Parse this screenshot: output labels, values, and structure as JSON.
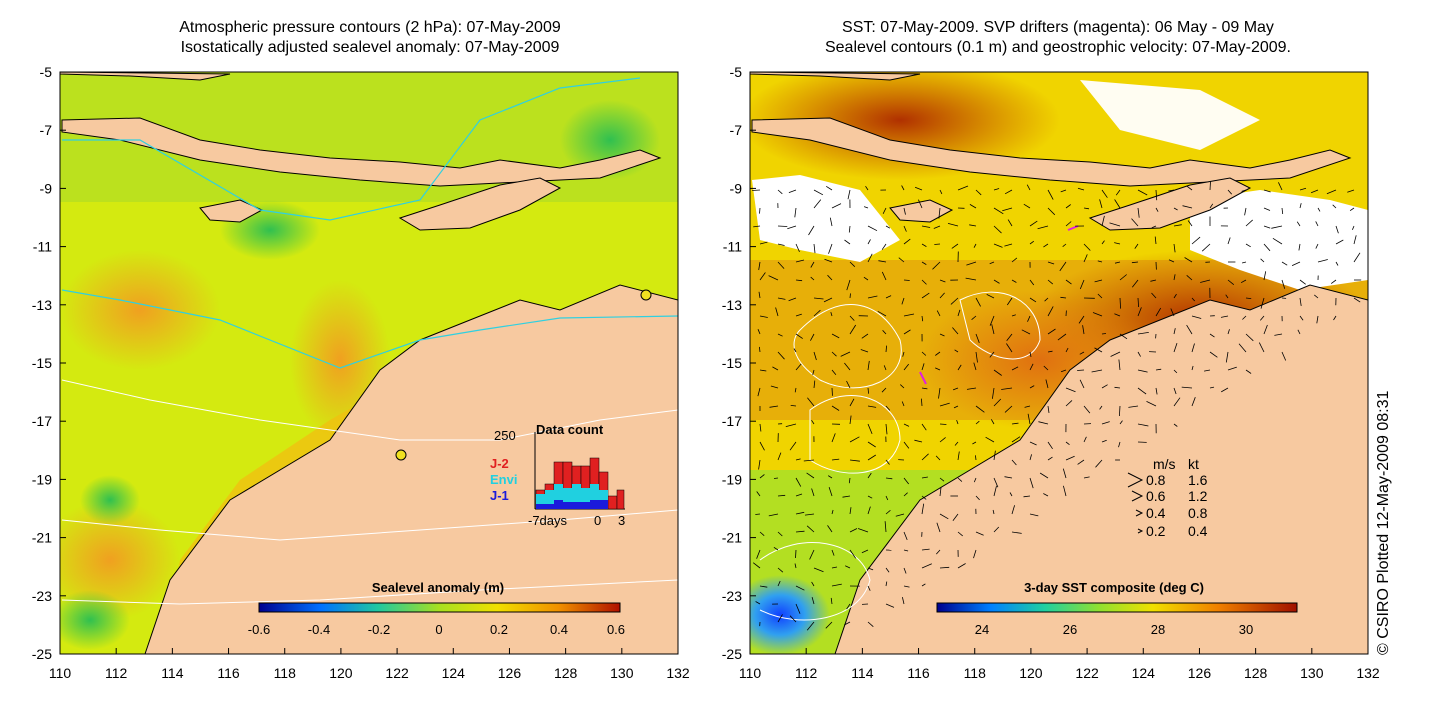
{
  "left_panel": {
    "title_line1": "Atmospheric pressure contours (2 hPa): 07-May-2009",
    "title_line2": "Isostatically adjusted sealevel anomaly: 07-May-2009",
    "colorbar_title": "Sealevel anomaly (m)",
    "colorbar_ticks": [
      "-0.6",
      "-0.4",
      "-0.2",
      "0",
      "0.2",
      "0.4",
      "0.6"
    ],
    "inset": {
      "title": "Data count",
      "ymax_label": "250",
      "x_start_label": "-7days",
      "x_zero_label": "0",
      "x_end_label": "3",
      "missions": [
        {
          "name": "J-2",
          "color": "#e02020"
        },
        {
          "name": "Envi",
          "color": "#20d0e0"
        },
        {
          "name": "J-1",
          "color": "#1a1adc"
        }
      ]
    }
  },
  "right_panel": {
    "title_line1": "SST: 07-May-2009. SVP drifters (magenta): 06 May - 09 May",
    "title_line2": "Sealevel contours (0.1 m) and geostrophic velocity: 07-May-2009.",
    "colorbar_title": "3-day SST composite (deg C)",
    "colorbar_ticks": [
      "24",
      "26",
      "28",
      "30"
    ],
    "velocity_legend": {
      "header_ms": "m/s",
      "header_kt": "kt",
      "rows": [
        {
          "ms": "0.8",
          "kt": "1.6"
        },
        {
          "ms": "0.6",
          "kt": "1.2"
        },
        {
          "ms": "0.4",
          "kt": "0.8"
        },
        {
          "ms": "0.2",
          "kt": "0.4"
        }
      ]
    }
  },
  "axes": {
    "x_ticks": [
      "110",
      "112",
      "114",
      "116",
      "118",
      "120",
      "122",
      "124",
      "126",
      "128",
      "130",
      "132"
    ],
    "y_ticks": [
      "-5",
      "-7",
      "-9",
      "-11",
      "-13",
      "-15",
      "-17",
      "-19",
      "-21",
      "-23",
      "-25"
    ]
  },
  "credit": "© CSIRO Plotted 12-May-2009 08:31",
  "colors": {
    "land": "#f7c9a0",
    "sla_background": "#d4ea10",
    "cloud": "#ffffff"
  }
}
